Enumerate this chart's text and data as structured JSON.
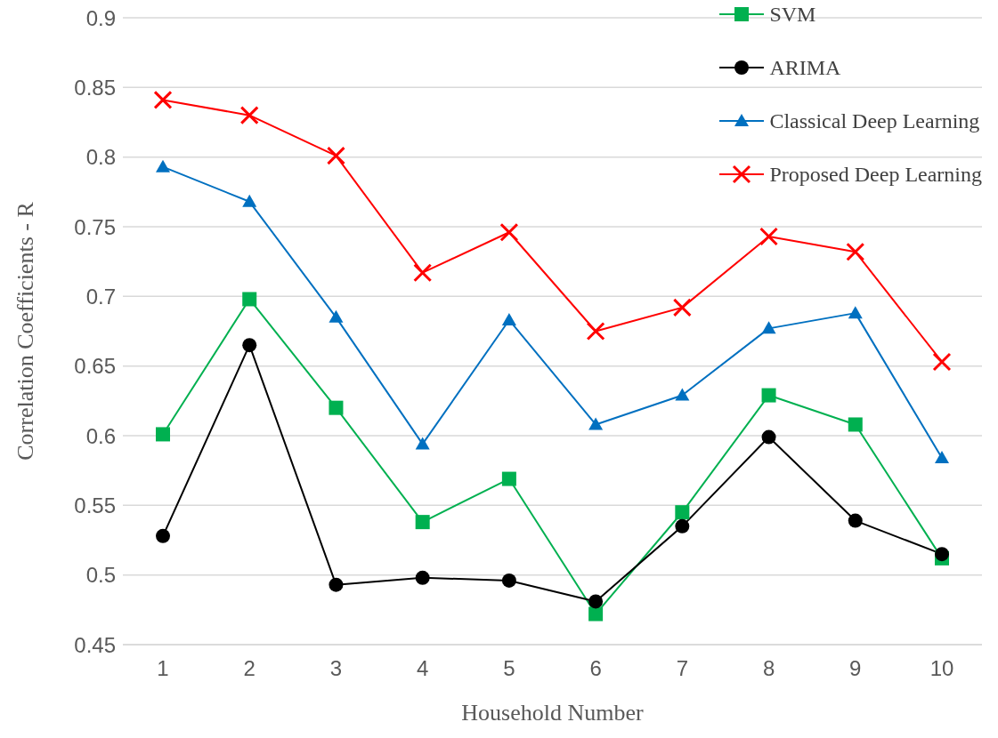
{
  "chart_data": {
    "type": "line",
    "xlabel": "Household Number",
    "ylabel": "Correlation Coefficients - R",
    "categories": [
      "1",
      "2",
      "3",
      "4",
      "5",
      "6",
      "7",
      "8",
      "9",
      "10"
    ],
    "series": [
      {
        "name": "SVM",
        "color": "#00b050",
        "marker": "square",
        "values": [
          0.601,
          0.698,
          0.62,
          0.538,
          0.569,
          0.472,
          0.545,
          0.629,
          0.608,
          0.512
        ]
      },
      {
        "name": "ARIMA",
        "color": "#000000",
        "marker": "circle",
        "values": [
          0.528,
          0.665,
          0.493,
          0.498,
          0.496,
          0.481,
          0.535,
          0.599,
          0.539,
          0.515
        ]
      },
      {
        "name": "Classical Deep Learning",
        "color": "#0070c0",
        "marker": "triangle",
        "values": [
          0.793,
          0.768,
          0.685,
          0.594,
          0.683,
          0.608,
          0.629,
          0.677,
          0.688,
          0.584
        ]
      },
      {
        "name": "Proposed Deep Learning",
        "color": "#ff0000",
        "marker": "cross",
        "values": [
          0.841,
          0.83,
          0.801,
          0.717,
          0.746,
          0.675,
          0.692,
          0.743,
          0.732,
          0.653
        ]
      }
    ],
    "ylim": [
      0.45,
      0.9
    ],
    "yticks": [
      0.45,
      0.5,
      0.55,
      0.6,
      0.65,
      0.7,
      0.75,
      0.8,
      0.85,
      0.9
    ],
    "grid": "y",
    "legend": "top right",
    "line_style": "solid"
  }
}
